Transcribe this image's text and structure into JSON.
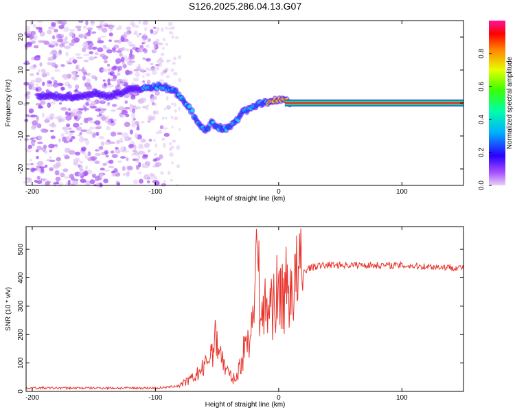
{
  "title": "S126.2025.286.04.13.G07",
  "chart_data": [
    {
      "type": "heatmap",
      "name": "spectrogram",
      "xlabel": "Height of straight line (km)",
      "ylabel": "Frequency (Hz)",
      "xlim": [
        -205,
        150
      ],
      "ylim": [
        -25,
        25
      ],
      "xticks": [
        -200,
        -100,
        0,
        100
      ],
      "yticks": [
        -20,
        -10,
        0,
        10,
        20
      ],
      "xtick_labels": [
        "-200",
        "-100",
        "0",
        "100"
      ],
      "ytick_labels": [
        "-20",
        "-10",
        "0",
        "10",
        "20"
      ],
      "ridge": {
        "x": [
          -190,
          -175,
          -160,
          -150,
          -140,
          -120,
          -105,
          -95,
          -85,
          -80,
          -75,
          -70,
          -65,
          -60,
          -55,
          -50,
          -45,
          -40,
          -35,
          -30,
          -25,
          -20,
          -15,
          -10,
          -5,
          0,
          5,
          10,
          50,
          100,
          150
        ],
        "freq": [
          2,
          2,
          2,
          3,
          2,
          4,
          5,
          5,
          4,
          2,
          0,
          -3,
          -6,
          -9,
          -6,
          -7,
          -8,
          -7,
          -6,
          -3,
          -2,
          -1,
          0,
          0,
          1,
          1,
          1,
          0,
          0,
          0,
          0
        ]
      },
      "colorbar": {
        "label": "Normalized spectral amplitude",
        "range": [
          0,
          1
        ],
        "ticks": [
          0.0,
          0.2,
          0.4,
          0.6,
          0.8
        ],
        "tick_labels": [
          "0.0",
          "0.2",
          "0.4",
          "0.6",
          "0.8"
        ]
      }
    },
    {
      "type": "line",
      "name": "snr",
      "xlabel": "Height of straight line (km)",
      "ylabel": "SNR (10 * v/v)",
      "xlim": [
        -205,
        150
      ],
      "ylim": [
        0,
        580
      ],
      "xticks": [
        -200,
        -100,
        0,
        100
      ],
      "yticks": [
        0,
        100,
        200,
        300,
        400,
        500
      ],
      "xtick_labels": [
        "-200",
        "-100",
        "0",
        "100"
      ],
      "ytick_labels": [
        "0",
        "100",
        "200",
        "300",
        "400",
        "500"
      ],
      "color": "#e8322a",
      "series": {
        "x": [
          -205,
          -180,
          -150,
          -120,
          -100,
          -90,
          -80,
          -70,
          -60,
          -55,
          -50,
          -45,
          -40,
          -35,
          -30,
          -25,
          -20,
          -18,
          -15,
          -10,
          -5,
          0,
          5,
          10,
          15,
          20,
          25,
          30,
          40,
          60,
          100,
          150
        ],
        "y": [
          12,
          12,
          12,
          12,
          12,
          14,
          22,
          45,
          85,
          140,
          190,
          100,
          55,
          40,
          110,
          200,
          260,
          580,
          270,
          290,
          320,
          340,
          355,
          370,
          395,
          420,
          435,
          440,
          445,
          445,
          443,
          435
        ]
      }
    }
  ]
}
